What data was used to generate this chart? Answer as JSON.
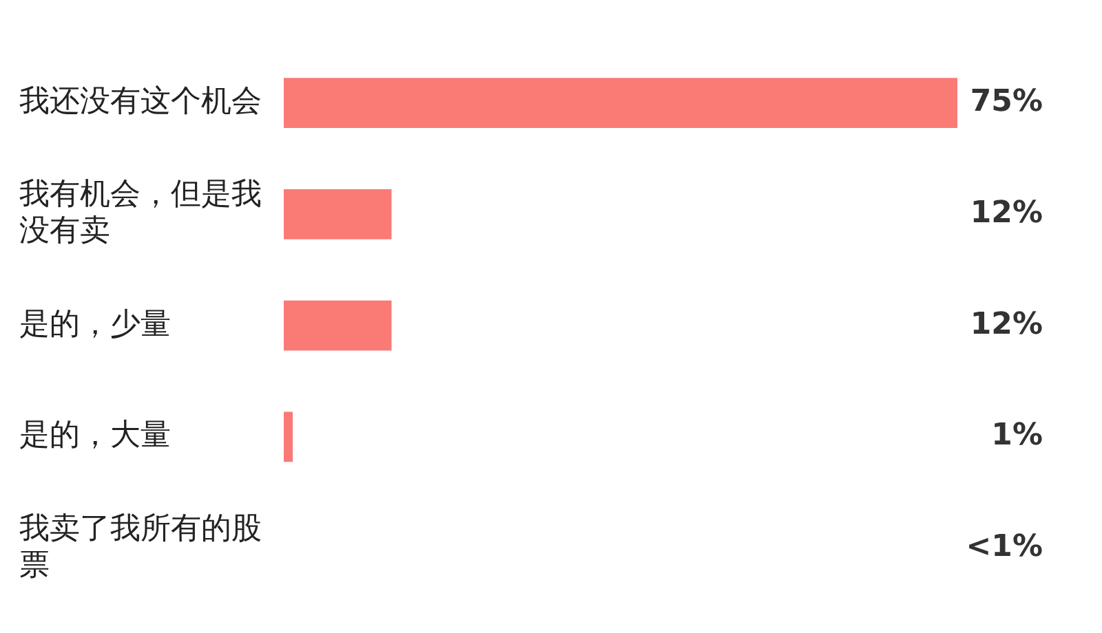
{
  "chart_data": {
    "type": "bar",
    "orientation": "horizontal",
    "categories": [
      "我还没有这个机会",
      "我有机会，但是我没有卖",
      "是的，少量",
      "是的，大量",
      "我卖了我所有的股票"
    ],
    "values": [
      75,
      12,
      12,
      1,
      null
    ],
    "value_labels": [
      "75%",
      "12%",
      "12%",
      "1%",
      "<1%"
    ],
    "color": "#fa7a76",
    "xlim": [
      0,
      75
    ],
    "tick_labels": "y",
    "grid": false,
    "legend": false
  }
}
